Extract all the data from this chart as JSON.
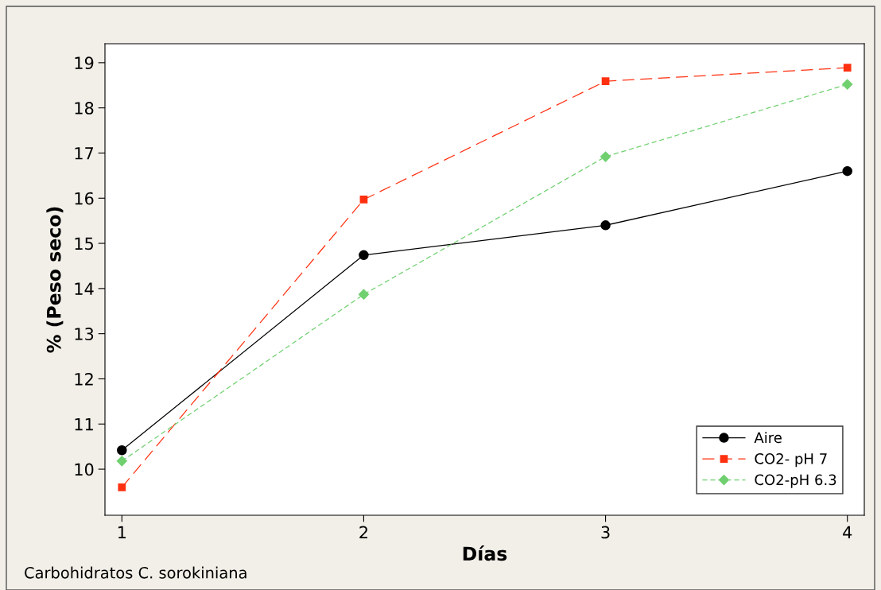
{
  "chart_data": {
    "type": "line",
    "xlabel": "Días",
    "ylabel": "% (Peso seco)",
    "x": [
      1,
      2,
      3,
      4
    ],
    "xlim": [
      0.93,
      4.07
    ],
    "xticks": [
      1,
      2,
      3,
      4
    ],
    "ylim": [
      8.98,
      19.42
    ],
    "yticks": [
      10,
      11,
      12,
      13,
      14,
      15,
      16,
      17,
      18,
      19
    ],
    "series": [
      {
        "name": "Aire",
        "color": "#000000",
        "marker": "circle",
        "line_style": "solid",
        "values": [
          10.42,
          14.74,
          15.4,
          16.6
        ]
      },
      {
        "name": "CO2- pH 7",
        "color": "#ff3010",
        "marker": "square",
        "line_style": "dashed",
        "values": [
          9.6,
          15.97,
          18.59,
          18.89
        ]
      },
      {
        "name": "CO2-pH 6.3",
        "color": "#70d070",
        "marker": "diamond",
        "line_style": "dotted",
        "values": [
          10.18,
          13.87,
          16.92,
          18.52
        ]
      }
    ],
    "legend": "bottom right",
    "grid": false,
    "annotations": [
      "Carbohidratos C. sorokiniana"
    ]
  }
}
